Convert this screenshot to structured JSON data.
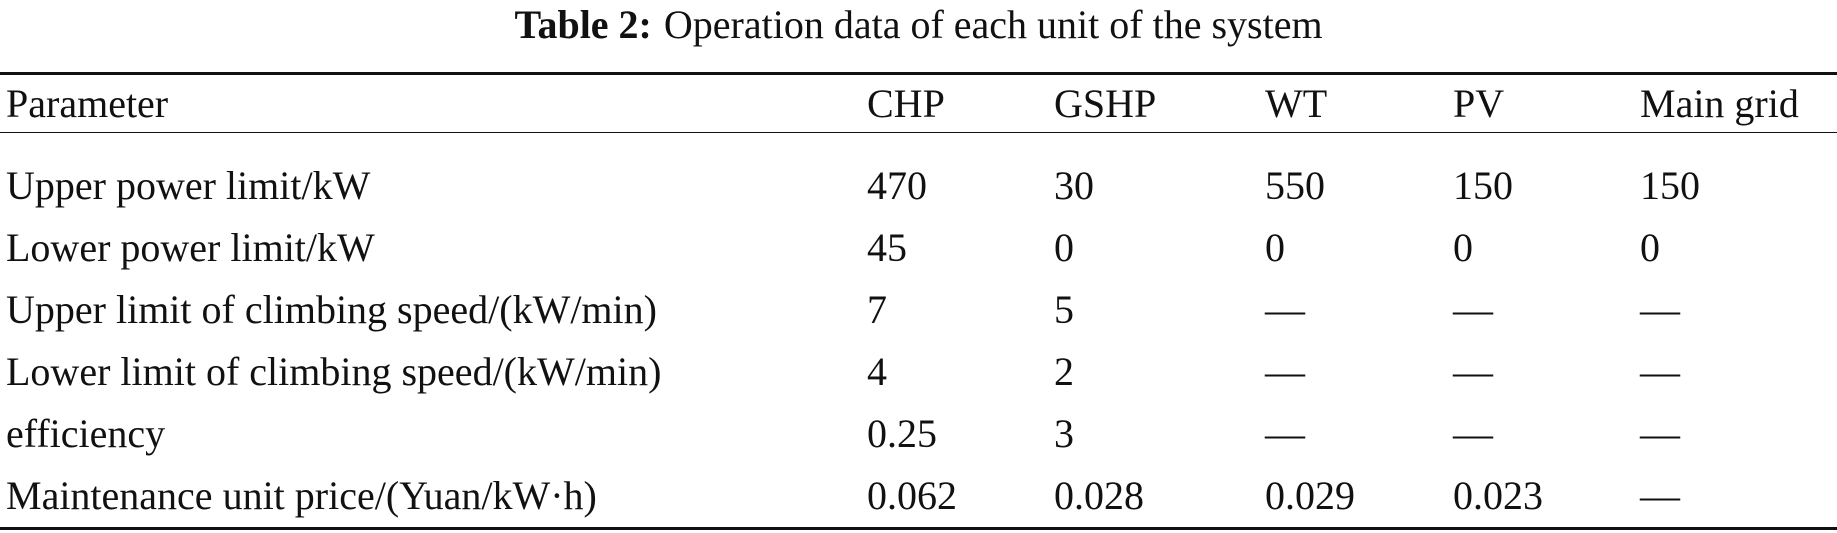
{
  "caption": {
    "label": "Table 2:",
    "text": "Operation data of each unit of the system"
  },
  "table": {
    "columns": [
      "Parameter",
      "CHP",
      "GSHP",
      "WT",
      "PV",
      "Main grid"
    ],
    "rows": [
      [
        "Upper power limit/kW",
        "470",
        "30",
        "550",
        "150",
        "150"
      ],
      [
        "Lower power limit/kW",
        "45",
        "0",
        "0",
        "0",
        "0"
      ],
      [
        "Upper limit of climbing speed/(kW/min)",
        "7",
        "5",
        "—",
        "—",
        "—"
      ],
      [
        "Lower limit of climbing speed/(kW/min)",
        "4",
        "2",
        "—",
        "—",
        "—"
      ],
      [
        "efficiency",
        "0.25",
        "3",
        "—",
        "—",
        "—"
      ],
      [
        "Maintenance unit price/(Yuan/kW·h)",
        "0.062",
        "0.028",
        "0.029",
        "0.023",
        "—"
      ]
    ]
  }
}
